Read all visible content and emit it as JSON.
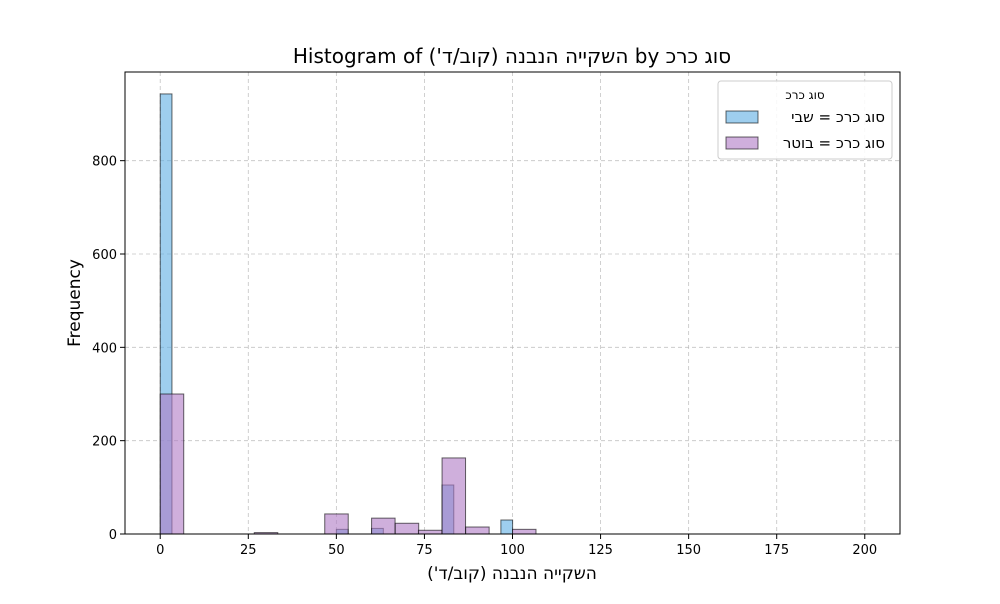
{
  "chart_data": {
    "type": "histogram",
    "title": "Histogram of השקייה הנבנה (קוב/ד') by סוג כרכ",
    "xlabel": "השקייה הנבנה (קוב/ד')",
    "ylabel": "Frequency",
    "xlim": [
      -10,
      210
    ],
    "ylim": [
      0,
      990
    ],
    "x_ticks": [
      0,
      25,
      50,
      75,
      100,
      125,
      150,
      175,
      200
    ],
    "y_ticks": [
      0,
      200,
      400,
      600,
      800
    ],
    "grid": true,
    "legend": {
      "title": "סוג כרכ",
      "placement": "top-right"
    },
    "series": [
      {
        "name": "סוג כרכ = שבי",
        "color": "#5DADE2",
        "bin_width": 3.33,
        "bins": [
          {
            "x": 0,
            "count": 943
          },
          {
            "x": 50,
            "count": 10
          },
          {
            "x": 60,
            "count": 12
          },
          {
            "x": 80,
            "count": 105
          },
          {
            "x": 96.7,
            "count": 30
          }
        ]
      },
      {
        "name": "סוג כרכ = בוטר",
        "color": "#AF7AC5",
        "bin_width": 6.67,
        "bins": [
          {
            "x": 0,
            "count": 300
          },
          {
            "x": 26.7,
            "count": 3
          },
          {
            "x": 46.7,
            "count": 43
          },
          {
            "x": 60,
            "count": 34
          },
          {
            "x": 66.7,
            "count": 23
          },
          {
            "x": 73.3,
            "count": 8
          },
          {
            "x": 80,
            "count": 163
          },
          {
            "x": 86.7,
            "count": 15
          },
          {
            "x": 100,
            "count": 10
          }
        ]
      }
    ]
  }
}
